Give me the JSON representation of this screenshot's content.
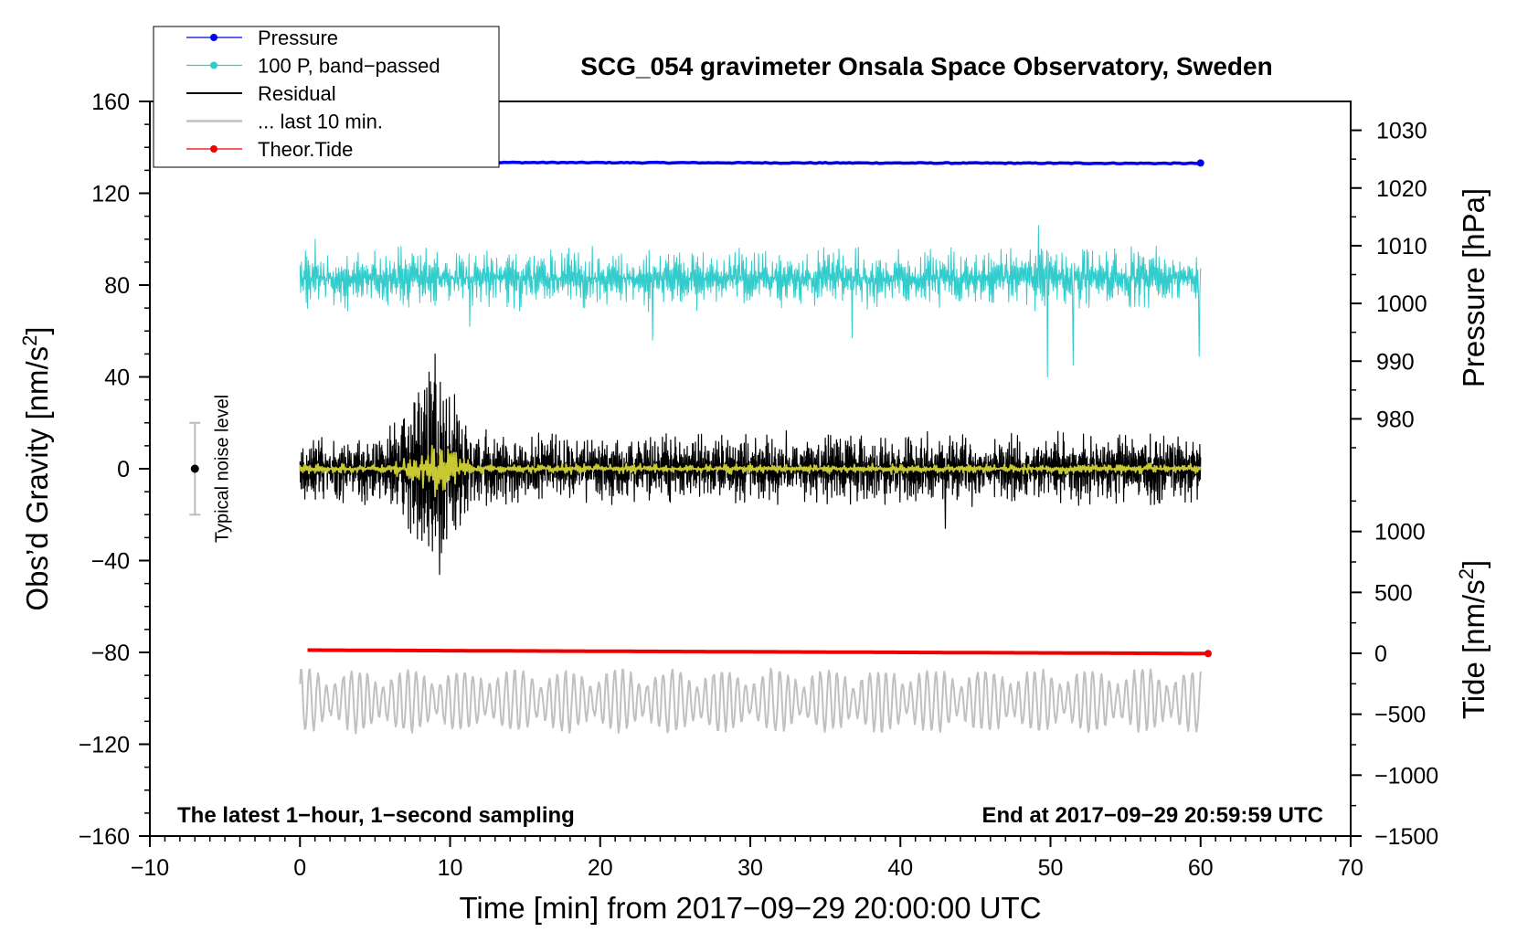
{
  "chart_data": {
    "type": "line",
    "title": "SCG_054 gravimeter Onsala Space Observatory, Sweden",
    "xlabel": "Time [min] from 2017−09−29 20:00:00 UTC",
    "ylabel": "Obs’d Gravity [nm/s",
    "ylabel_sup": "2",
    "ylabel_close": "]",
    "y2label_pressure": "Pressure [hPa]",
    "y2label_tide": "Tide [nm/s",
    "y2label_tide_sup": "2",
    "y2label_tide_close": "]",
    "xlim": [
      -10,
      70
    ],
    "ylim": [
      -160,
      160
    ],
    "xticks": [
      -10,
      0,
      10,
      20,
      30,
      40,
      50,
      60,
      70
    ],
    "xtick_labels": [
      "−10",
      "0",
      "10",
      "20",
      "30",
      "40",
      "50",
      "60",
      "70"
    ],
    "yticks": [
      -160,
      -120,
      -80,
      -40,
      0,
      40,
      80,
      120,
      160
    ],
    "ytick_labels": [
      "−160",
      "−120",
      "−80",
      "−40",
      "0",
      "40",
      "80",
      "120",
      "160"
    ],
    "pressure_axis": {
      "range": [
        975,
        1035
      ],
      "ticks": [
        980,
        990,
        1000,
        1010,
        1020,
        1030
      ],
      "tick_labels": [
        "980",
        "990",
        "1000",
        "1010",
        "1020",
        "1030"
      ]
    },
    "tide_axis": {
      "range": [
        -1500,
        1500
      ],
      "ticks": [
        -1500,
        -1000,
        -500,
        0,
        500,
        1000
      ],
      "tick_labels": [
        "−1500",
        "−1000",
        "−500",
        "0",
        "500",
        "1000"
      ]
    },
    "left_note": "The latest 1−hour, 1−second sampling",
    "right_note": "End at 2017−09−29 20:59:59 UTC",
    "noise_level": {
      "label": "Typical noise level",
      "x": -7,
      "center": 0,
      "half_range": 20
    },
    "legend": [
      {
        "label": "Pressure",
        "color": "#0000ee",
        "marker": true
      },
      {
        "label": "100 P, band−passed",
        "color": "#33cccc",
        "marker": true
      },
      {
        "label": "Residual",
        "color": "#000000",
        "marker": false
      },
      {
        "label": "... last 10 min.",
        "color": "#c0c0c0",
        "marker": false
      },
      {
        "label": "Theor.Tide",
        "color": "#ee0000",
        "marker": true
      }
    ],
    "series": [
      {
        "name": "Pressure",
        "color": "#0000ee",
        "axis": "left",
        "kind": "flat",
        "x_range": [
          0,
          60
        ],
        "start": 133.5,
        "end": 133,
        "amplitude": 0.4
      },
      {
        "name": "100 P, band−passed",
        "color": "#33cccc",
        "axis": "left",
        "kind": "noise",
        "x_range": [
          0,
          60
        ],
        "offset": 83,
        "amplitude": 9,
        "spikes": [
          {
            "x": 1.0,
            "y": 100
          },
          {
            "x": 11.3,
            "y": 62
          },
          {
            "x": 23.5,
            "y": 56
          },
          {
            "x": 36.8,
            "y": 57
          },
          {
            "x": 49.2,
            "y": 106
          },
          {
            "x": 49.8,
            "y": 40
          },
          {
            "x": 51.5,
            "y": 45
          },
          {
            "x": 59.9,
            "y": 49
          }
        ]
      },
      {
        "name": "Residual",
        "color": "#000000",
        "axis": "left",
        "kind": "noise",
        "x_range": [
          0,
          60
        ],
        "offset": 0,
        "amplitude": 10,
        "burst": {
          "x": 9,
          "width": 2,
          "amplitude": 22
        },
        "spikes": [
          {
            "x": 9.0,
            "y": 50
          },
          {
            "x": 9.3,
            "y": -46
          },
          {
            "x": 43.0,
            "y": -26
          }
        ]
      },
      {
        "name": "Residual (filtered)",
        "color": "#c8c832",
        "axis": "left",
        "kind": "noise",
        "x_range": [
          0,
          60
        ],
        "offset": 0,
        "amplitude": 1.5,
        "burst": {
          "x": 9,
          "width": 1.6,
          "amplitude": 9
        }
      },
      {
        "name": "... last 10 min.",
        "color": "#c0c0c0",
        "axis": "left",
        "kind": "wave",
        "x_range": [
          0,
          60
        ],
        "offset": -101,
        "amplitude": 10,
        "period": 0.55
      },
      {
        "name": "Theor.Tide",
        "color": "#ee0000",
        "axis": "left",
        "kind": "flat",
        "x_range": [
          0.5,
          60.5
        ],
        "start": -79,
        "end": -80.5,
        "amplitude": 0
      }
    ]
  }
}
